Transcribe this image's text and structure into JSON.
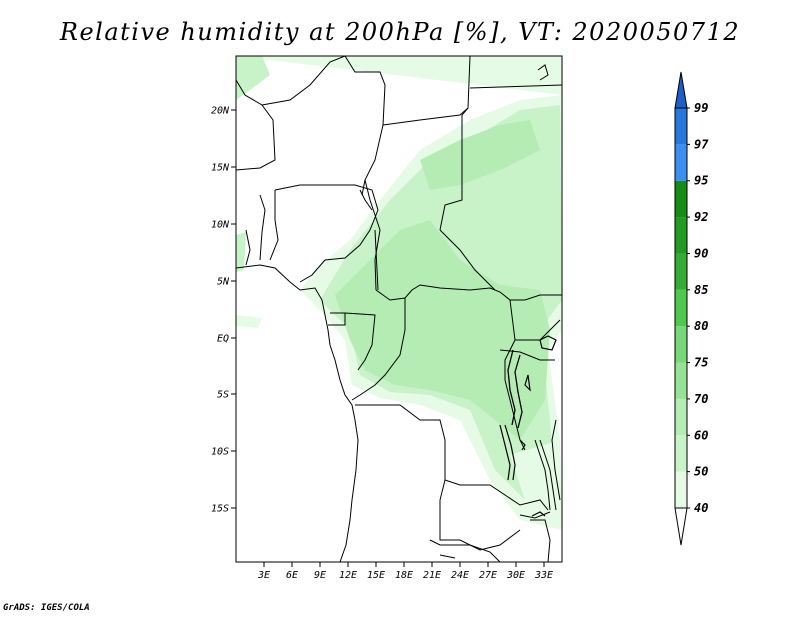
{
  "title": "Relative humidity at 200hPa [%], VT: 2020050712",
  "credit": "GrADS: IGES/COLA",
  "map": {
    "lat_labels": [
      "20N",
      "15N",
      "10N",
      "5N",
      "EQ",
      "5S",
      "10S",
      "15S"
    ],
    "lon_labels": [
      "3E",
      "6E",
      "9E",
      "12E",
      "15E",
      "18E",
      "21E",
      "24E",
      "27E",
      "30E",
      "33E"
    ],
    "humid_zone_colors": {
      "rh40": "#e6fbe6",
      "rh50": "#c8f2c8",
      "rh60": "#b4ecb4"
    }
  },
  "colorbar": {
    "levels": [
      "40",
      "50",
      "60",
      "70",
      "75",
      "80",
      "85",
      "90",
      "92",
      "95",
      "97",
      "99"
    ],
    "colors": [
      "#ffffff",
      "#e6fbe6",
      "#c8f2c8",
      "#b4ecb4",
      "#96e196",
      "#78d778",
      "#50c850",
      "#37aa37",
      "#239a23",
      "#168c16",
      "#3c8ff0",
      "#2877dc",
      "#1e5ec8"
    ]
  }
}
